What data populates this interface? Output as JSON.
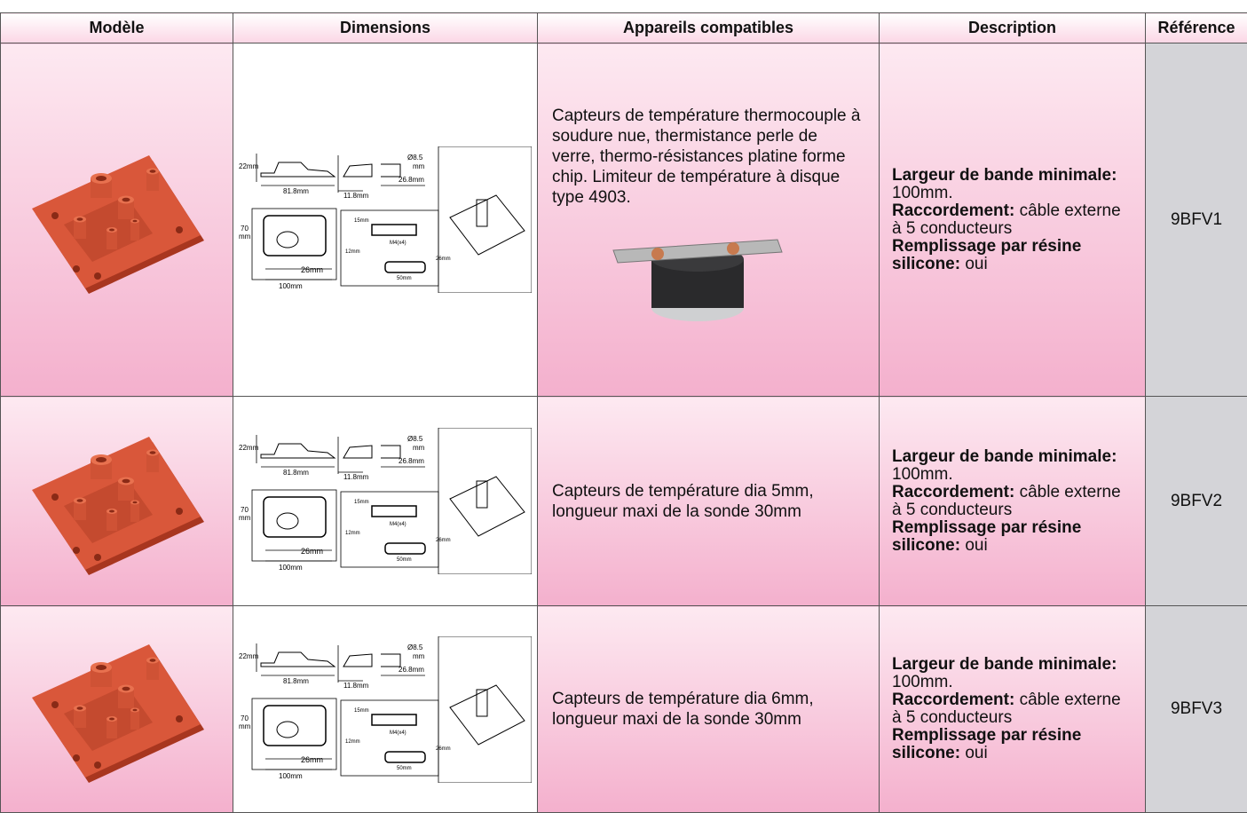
{
  "table": {
    "headers": [
      "Modèle",
      "Dimensions",
      "Appareils compatibles",
      "Description",
      "Référence"
    ],
    "rows": [
      {
        "compatible": "Capteurs de température thermocouple à soudure nue, thermistance perle de verre, thermo-résistances platine forme chip. Limiteur de température à disque type 4903.",
        "description": [
          {
            "bold": "Largeur de bande minimale:",
            "text": "100mm."
          },
          {
            "bold": "Raccordement:",
            "text": "câble externe à 5 conducteurs"
          },
          {
            "bold": "Remplissage par résine silicone:",
            "text": "oui"
          }
        ],
        "reference": "9BFV1"
      },
      {
        "compatible": "Capteurs de température dia 5mm, longueur maxi de la sonde 30mm",
        "description": [
          {
            "bold": "Largeur de bande minimale:",
            "text": "100mm."
          },
          {
            "bold": "Raccordement:",
            "text": "câble externe à 5 conducteurs"
          },
          {
            "bold": "Remplissage par résine silicone:",
            "text": "oui"
          }
        ],
        "reference": "9BFV2"
      },
      {
        "compatible": "Capteurs de température dia 6mm, longueur maxi de la sonde 30mm",
        "description": [
          {
            "bold": "Largeur de bande minimale:",
            "text": "100mm."
          },
          {
            "bold": "Raccordement:",
            "text": "câble externe à 5 conducteurs"
          },
          {
            "bold": "Remplissage par résine silicone:",
            "text": "oui"
          }
        ],
        "reference": "9BFV3"
      }
    ]
  },
  "drawing_labels": [
    "22mm",
    "81.8mm",
    "Ø8.5",
    "mm",
    "26.8mm",
    "11.8mm",
    "70",
    "mm",
    "26mm",
    "100mm",
    "15mm",
    "M4(x4)",
    "12mm",
    "26mm",
    "50mm"
  ]
}
